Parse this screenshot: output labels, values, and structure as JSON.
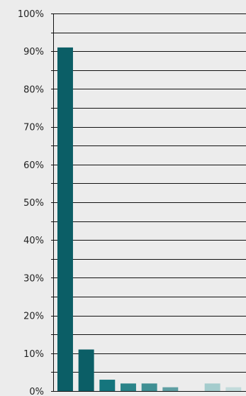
{
  "chart_data": {
    "type": "bar",
    "title": "",
    "xlabel": "",
    "ylabel": "",
    "ylim": [
      0,
      100
    ],
    "yticks": [
      0,
      10,
      20,
      30,
      40,
      50,
      60,
      70,
      80,
      90,
      100
    ],
    "ytick_labels": [
      "0%",
      "10%",
      "20%",
      "30%",
      "40%",
      "50%",
      "60%",
      "70%",
      "80%",
      "90%",
      "100%"
    ],
    "minor_gridlines": true,
    "grid": true,
    "values": [
      91,
      11,
      3,
      2,
      2,
      1,
      0,
      2,
      1
    ],
    "colors": [
      "#0b5e66",
      "#0b5e66",
      "#15757d",
      "#2a8489",
      "#3f8f93",
      "#5f9fa3",
      "#7cb3b6",
      "#a4cccd",
      "#c2dbdb"
    ]
  }
}
